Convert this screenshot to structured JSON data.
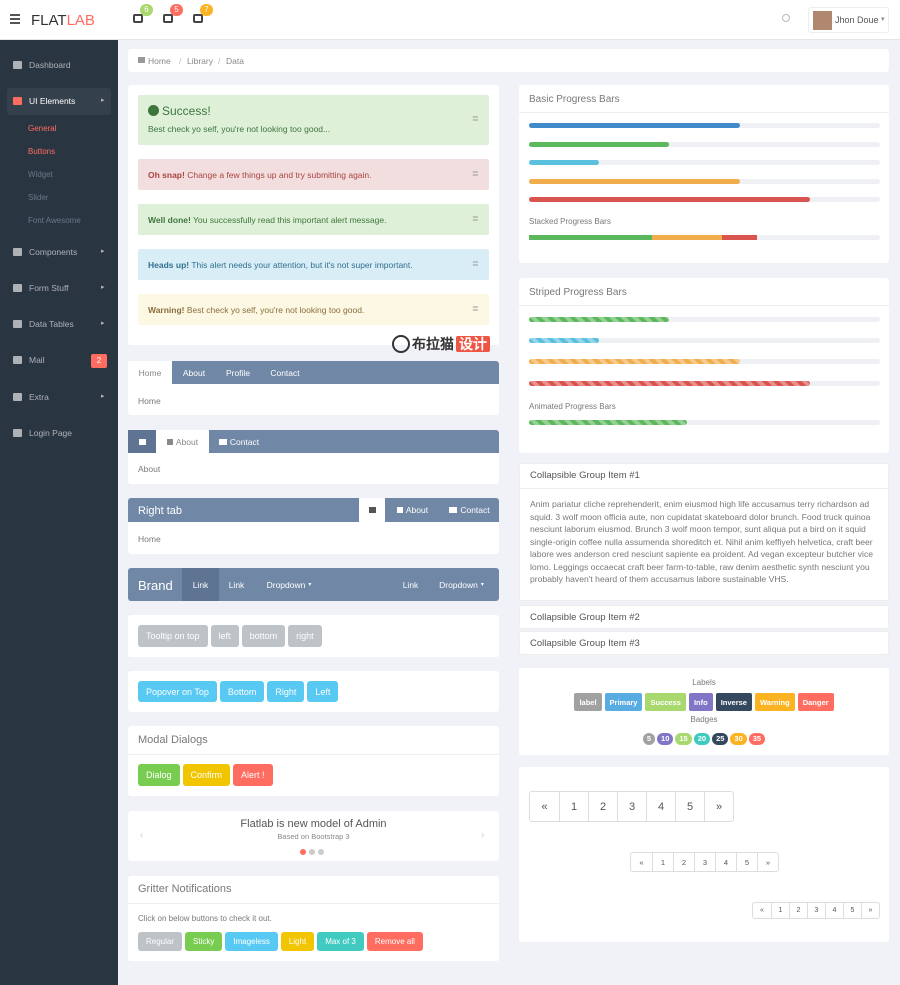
{
  "header": {
    "logo": [
      "FLAT",
      "LAB"
    ],
    "badges": [
      6,
      5,
      7
    ],
    "user": "Jhon Doue"
  },
  "sidebar": {
    "items": [
      {
        "label": "Dashboard"
      },
      {
        "label": "UI Elements",
        "children": [
          "General",
          "Buttons",
          "Widget",
          "Slider",
          "Font Awesome"
        ]
      },
      {
        "label": "Components"
      },
      {
        "label": "Form Stuff"
      },
      {
        "label": "Data Tables"
      },
      {
        "label": "Mail",
        "badge": 2
      },
      {
        "label": "Extra"
      },
      {
        "label": "Login Page"
      }
    ]
  },
  "breadcrumb": [
    "Home",
    "Library",
    "Data"
  ],
  "alerts": [
    {
      "title": "Success!",
      "text": "Best check yo self, you're not looking too good..."
    },
    {
      "title": "Oh snap!",
      "text": "Change a few things up and try submitting again."
    },
    {
      "title": "Well done!",
      "text": "You successfully read this important alert message."
    },
    {
      "title": "Heads up!",
      "text": "This alert needs your attention, but it's not super important."
    },
    {
      "title": "Warning!",
      "text": "Best check yo self, you're not looking too good."
    }
  ],
  "watermark": [
    "布拉猫",
    "设计"
  ],
  "tabs": [
    {
      "tabs": [
        "Home",
        "About",
        "Profile",
        "Contact"
      ],
      "content": "Home"
    },
    {
      "tabs": [
        "About",
        "Contact"
      ],
      "content": "About"
    },
    {
      "title": "Right tab",
      "tabs": [
        "About",
        "Contact"
      ],
      "content": "Home"
    }
  ],
  "navbar": {
    "brand": "Brand",
    "left": [
      "Link",
      "Link",
      "Dropdown"
    ],
    "right": [
      "Link",
      "Dropdown"
    ]
  },
  "tooltip_buttons": [
    "Tooltip on top",
    "left",
    "bottom",
    "right"
  ],
  "popover_buttons": [
    "Popover on Top",
    "Bottom",
    "Right",
    "Left"
  ],
  "modal": {
    "title": "Modal Dialogs",
    "buttons": [
      "Dialog",
      "Confirm",
      "Alert !"
    ]
  },
  "carousel": {
    "title": "Flatlab is new model of Admin",
    "subtitle": "Based on Bootstrap 3"
  },
  "gritter": {
    "title": "Gritter Notifications",
    "text": "Click on below buttons to check it out.",
    "buttons": [
      "Regular",
      "Sticky",
      "Imageless",
      "Light",
      "Max of 3",
      "Remove all"
    ]
  },
  "progress": {
    "basic": {
      "title": "Basic Progress Bars",
      "bars": [
        {
          "value": 60,
          "color": "#428bca"
        },
        {
          "value": 40,
          "color": "#5cb85c"
        },
        {
          "value": 20,
          "color": "#5bc0de"
        },
        {
          "value": 60,
          "color": "#f0ad4e"
        },
        {
          "value": 80,
          "color": "#d9534f"
        }
      ]
    },
    "stacked": {
      "title": "Stacked Progress Bars",
      "segments": [
        {
          "value": 35,
          "color": "#5cb85c"
        },
        {
          "value": 20,
          "color": "#f0ad4e"
        },
        {
          "value": 10,
          "color": "#d9534f"
        }
      ]
    },
    "striped": {
      "title": "Striped Progress Bars",
      "bars": [
        {
          "value": 40,
          "color": "#5cb85c"
        },
        {
          "value": 20,
          "color": "#5bc0de"
        },
        {
          "value": 60,
          "color": "#f0ad4e"
        },
        {
          "value": 80,
          "color": "#d9534f"
        }
      ]
    },
    "animated": {
      "title": "Animated Progress Bars",
      "bars": [
        {
          "value": 45,
          "color": "#5cb85c"
        }
      ]
    }
  },
  "accordion": [
    {
      "title": "Collapsible Group Item #1",
      "body": "Anim pariatur cliche reprehenderit, enim eiusmod high life accusamus terry richardson ad squid. 3 wolf moon officia aute, non cupidatat skateboard dolor brunch. Food truck quinoa nesciunt laborum eiusmod. Brunch 3 wolf moon tempor, sunt aliqua put a bird on it squid single-origin coffee nulla assumenda shoreditch et. Nihil anim keffiyeh helvetica, craft beer labore wes anderson cred nesciunt sapiente ea proident. Ad vegan excepteur butcher vice lomo. Leggings occaecat craft beer farm-to-table, raw denim aesthetic synth nesciunt you probably haven't heard of them accusamus labore sustainable VHS."
    },
    {
      "title": "Collapsible Group Item #2"
    },
    {
      "title": "Collapsible Group Item #3"
    }
  ],
  "labels": {
    "title": "Labels",
    "items": [
      {
        "text": "label",
        "color": "#a1a1a1"
      },
      {
        "text": "Primary",
        "color": "#59ace2"
      },
      {
        "text": "Success",
        "color": "#a9d86e"
      },
      {
        "text": "Info",
        "color": "#8175c7"
      },
      {
        "text": "Inverse",
        "color": "#344860"
      },
      {
        "text": "Warning",
        "color": "#fcb322"
      },
      {
        "text": "Danger",
        "color": "#ff6c60"
      }
    ],
    "badges_title": "Badges",
    "badges": [
      {
        "value": 5,
        "color": "#a1a1a1"
      },
      {
        "value": 10,
        "color": "#8175c7"
      },
      {
        "value": 15,
        "color": "#a9d86e"
      },
      {
        "value": 20,
        "color": "#41cac0"
      },
      {
        "value": 25,
        "color": "#344860"
      },
      {
        "value": 30,
        "color": "#fcb322"
      },
      {
        "value": 35,
        "color": "#ff6c60"
      }
    ]
  },
  "pagination": [
    [
      "«",
      "1",
      "2",
      "3",
      "4",
      "5",
      "»"
    ],
    [
      "«",
      "1",
      "2",
      "3",
      "4",
      "5",
      "»"
    ],
    [
      "«",
      "1",
      "2",
      "3",
      "4",
      "5",
      "»"
    ]
  ]
}
